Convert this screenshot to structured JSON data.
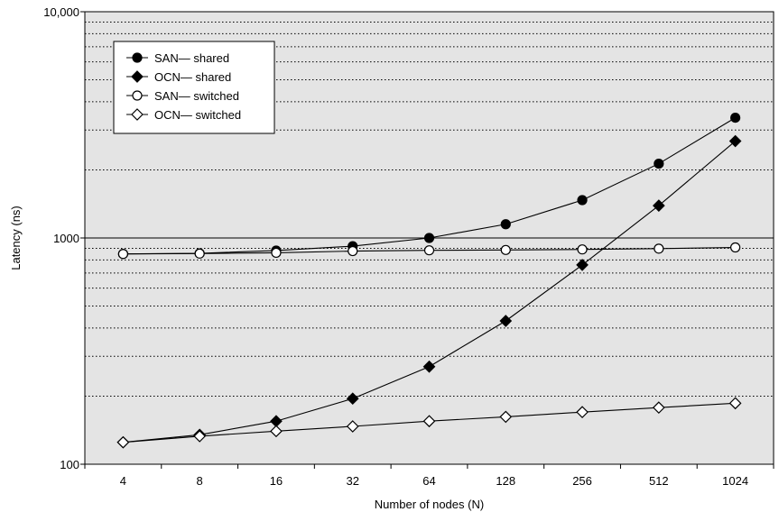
{
  "chart_data": {
    "type": "line",
    "title": "",
    "xlabel": "Number of nodes (N)",
    "ylabel": "Latency (ns)",
    "x_scale": "log2",
    "y_scale": "log10",
    "ylim": [
      100,
      10000
    ],
    "categories": [
      "4",
      "8",
      "16",
      "32",
      "64",
      "128",
      "256",
      "512",
      "1024"
    ],
    "y_tick_labels": [
      "100",
      "1000",
      "10,000"
    ],
    "grid": true,
    "background": "#e4e4e4",
    "legend_position": "top-left",
    "series": [
      {
        "name": "SAN— shared",
        "marker": "circle-filled",
        "values": [
          850,
          855,
          880,
          920,
          1000,
          1150,
          1470,
          2130,
          3400
        ]
      },
      {
        "name": "OCN— shared",
        "marker": "diamond-filled",
        "values": [
          125,
          135,
          155,
          195,
          270,
          430,
          760,
          1390,
          2680
        ]
      },
      {
        "name": "SAN— switched",
        "marker": "circle-open",
        "values": [
          850,
          853,
          860,
          875,
          882,
          885,
          890,
          897,
          908
        ]
      },
      {
        "name": "OCN— switched",
        "marker": "diamond-open",
        "values": [
          125,
          133,
          140,
          147,
          155,
          162,
          170,
          178,
          186
        ]
      }
    ]
  }
}
